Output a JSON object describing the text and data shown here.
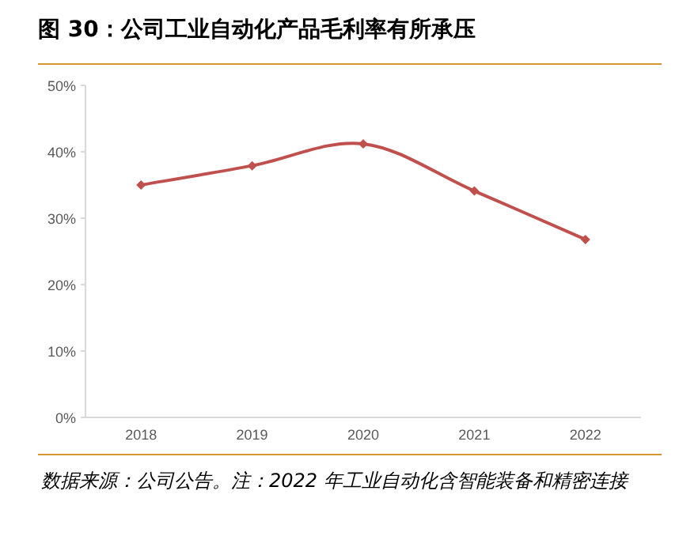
{
  "chart_data": {
    "type": "line",
    "title": "图 30：公司工业自动化产品毛利率有所承压",
    "categories": [
      "2018",
      "2019",
      "2020",
      "2021",
      "2022"
    ],
    "values": [
      35.0,
      37.9,
      41.2,
      34.1,
      26.8
    ],
    "color": "#c0504d",
    "marker": "diamond",
    "line_style": "solid",
    "ylim": [
      0,
      50
    ],
    "yticks": [
      {
        "value": 0,
        "label": "0%"
      },
      {
        "value": 10,
        "label": "10%"
      },
      {
        "value": 20,
        "label": "20%"
      },
      {
        "value": 30,
        "label": "30%"
      },
      {
        "value": 40,
        "label": "40%"
      },
      {
        "value": 50,
        "label": "50%"
      }
    ],
    "annotations": [
      "数据来源：公司公告。注：2022 年工业自动化含智能装备和精密连接"
    ]
  }
}
